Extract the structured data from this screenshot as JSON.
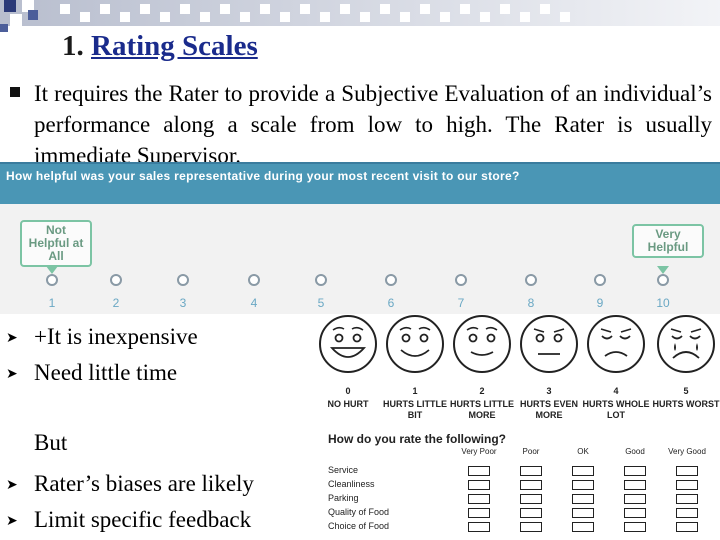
{
  "slide": {
    "title_num": "1.",
    "title_text": "Rating Scales",
    "main_bullet": "It requires the Rater to provide a Subjective Evaluation of an individual’s performance along a scale from low to high. The Rater is usually immediate Supervisor.",
    "pros": [
      "+It is inexpensive",
      "Need little time"
    ],
    "but": "But",
    "cons": [
      "Rater’s biases are likely",
      "Limit specific feedback"
    ]
  },
  "rating_panel": {
    "question": "How helpful was your sales representative during your most recent visit to our store?",
    "low_label": "Not Helpful at All",
    "high_label": "Very Helpful",
    "scale": [
      "1",
      "2",
      "3",
      "4",
      "5",
      "6",
      "7",
      "8",
      "9",
      "10"
    ]
  },
  "faces_scale": {
    "faces": [
      {
        "num": "0",
        "label": "NO HURT",
        "icon": "face-laughing-icon"
      },
      {
        "num": "1",
        "label": "HURTS LITTLE BIT",
        "icon": "face-smiling-icon"
      },
      {
        "num": "2",
        "label": "HURTS LITTLE MORE",
        "icon": "face-slight-smile-icon"
      },
      {
        "num": "3",
        "label": "HURTS EVEN MORE",
        "icon": "face-neutral-icon"
      },
      {
        "num": "4",
        "label": "HURTS WHOLE LOT",
        "icon": "face-sad-icon"
      },
      {
        "num": "5",
        "label": "HURTS WORST",
        "icon": "face-crying-icon"
      }
    ]
  },
  "survey": {
    "question": "How do you rate the following?",
    "columns": [
      "Very Poor",
      "Poor",
      "OK",
      "Good",
      "Very Good"
    ],
    "rows": [
      "Service",
      "Cleanliness",
      "Parking",
      "Quality of Food",
      "Choice of Food"
    ]
  },
  "colors": {
    "accent": "#4a96b5",
    "tag_green": "#7cc4a4",
    "title_blue": "#1a2b8c"
  }
}
